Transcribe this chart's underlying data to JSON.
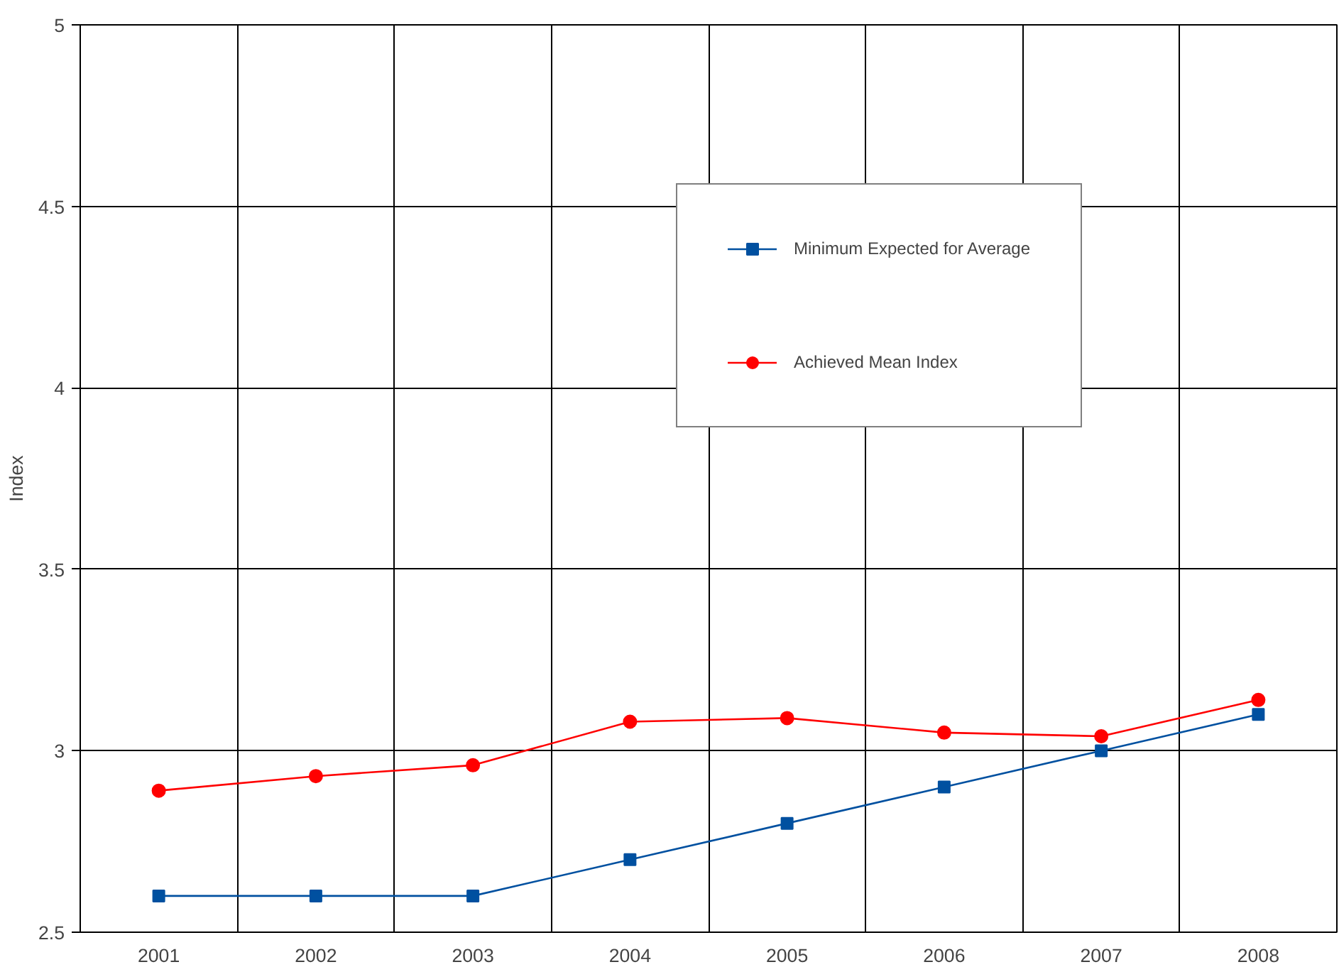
{
  "chart_data": {
    "type": "line",
    "ylabel": "Index",
    "categories": [
      "2001",
      "2002",
      "2003",
      "2004",
      "2005",
      "2006",
      "2007",
      "2008"
    ],
    "series": [
      {
        "name": "Minimum Expected for Average",
        "color": "#0050a0",
        "marker": "square",
        "values": [
          2.6,
          2.6,
          2.6,
          2.7,
          2.8,
          2.9,
          3.0,
          3.1
        ]
      },
      {
        "name": "Achieved Mean Index",
        "color": "#ff0000",
        "marker": "circle",
        "values": [
          2.89,
          2.93,
          2.96,
          3.08,
          3.09,
          3.05,
          3.04,
          3.14
        ]
      }
    ],
    "ylim": [
      2.5,
      5
    ],
    "yticks": [
      2.5,
      3,
      {
        "value": 3.5,
        "label": "3.5"
      },
      4,
      {
        "value": 4.5,
        "label": "4.5"
      },
      5
    ],
    "grid": true,
    "legend": "top right"
  }
}
